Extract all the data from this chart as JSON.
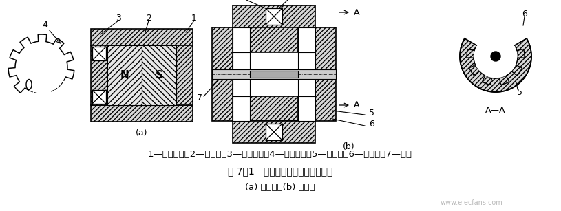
{
  "bg_color": "#ffffff",
  "fig_width": 8.15,
  "fig_height": 3.07,
  "dpi": 100,
  "legend_line": "1—永久磁铁；2—软磁铁；3—感应线圈；4—测量齿轮；5—内齿轮；6—外齿轮；7—转轴",
  "caption": "图 7－1   变磁通式磁电传感器结构图",
  "sub_caption": "(a) 开磁路；(b) 闭磁路",
  "label_a": "(a)",
  "label_b": "(b)",
  "lc": "#000000",
  "watermark": "www.elecfans.com",
  "hatch_fc": "#d8d8d8"
}
